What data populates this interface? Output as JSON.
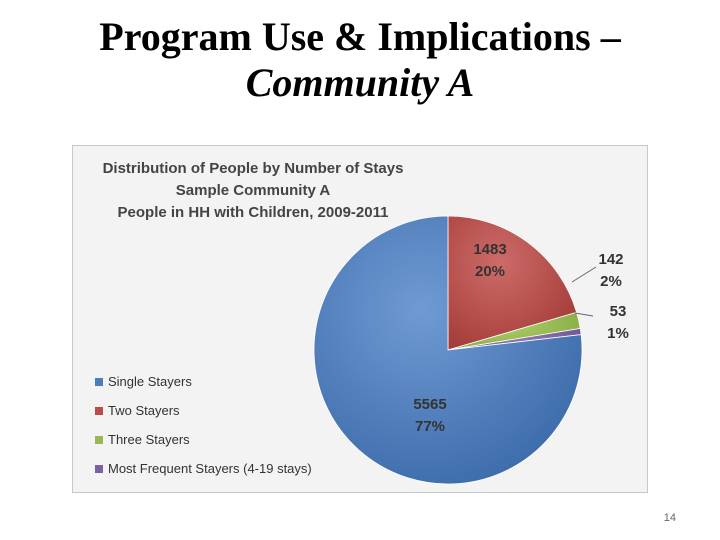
{
  "slide": {
    "title_line1": "Program Use & Implications –",
    "title_line2": "Community A",
    "page_number": "14"
  },
  "chart_data": {
    "type": "pie",
    "title": [
      "Distribution of People by Number of Stays",
      "Sample Community A",
      "People in HH with Children, 2009-2011"
    ],
    "legend_position": "bottom-left",
    "slices": [
      {
        "name": "Single Stayers",
        "value": 5565,
        "percent": "77%",
        "color": "#4a7ebb"
      },
      {
        "name": "Two Stayers",
        "value": 1483,
        "percent": "20%",
        "color": "#be4b48"
      },
      {
        "name": "Three Stayers",
        "value": 142,
        "percent": "2%",
        "color": "#98b954"
      },
      {
        "name": "Most Frequent Stayers (4-19 stays)",
        "value": 53,
        "percent": "1%",
        "color": "#7d60a0"
      }
    ]
  }
}
